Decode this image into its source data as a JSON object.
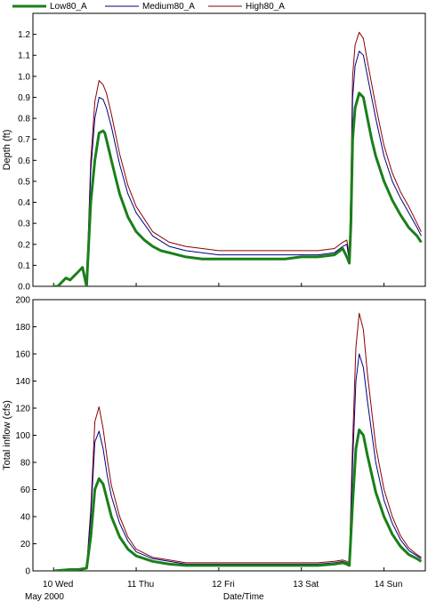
{
  "legend": [
    "Low80_A",
    "Medium80_A",
    "High80_A"
  ],
  "colors": {
    "Low80_A": "#1a7f1a",
    "Medium80_A": "#000080",
    "High80_A": "#8b0000"
  },
  "x_axis": {
    "label": "Date/Time",
    "ticks": [
      {
        "day": 0,
        "label": "10 Wed"
      },
      {
        "day": 1,
        "label": "11 Thu"
      },
      {
        "day": 2,
        "label": "12 Fri"
      },
      {
        "day": 3,
        "label": "13 Sat"
      },
      {
        "day": 4,
        "label": "14 Sun"
      }
    ],
    "sublabel": "May 2000",
    "range_days": [
      -0.25,
      4.5
    ]
  },
  "chart_data": [
    {
      "type": "line",
      "ylabel": "Depth (ft)",
      "ylim": [
        0,
        1.3
      ],
      "yticks": [
        0.0,
        0.1,
        0.2,
        0.3,
        0.4,
        0.5,
        0.6,
        0.7,
        0.8,
        0.9,
        1.0,
        1.1,
        1.2
      ],
      "grid": false,
      "x_unit": "days since 10 May 2000 00:00",
      "series": [
        {
          "name": "Low80_A",
          "x": [
            0.0,
            0.05,
            0.1,
            0.15,
            0.2,
            0.25,
            0.3,
            0.35,
            0.4,
            0.45,
            0.5,
            0.55,
            0.6,
            0.62,
            0.64,
            0.67,
            0.7,
            0.75,
            0.8,
            0.9,
            1.0,
            1.1,
            1.2,
            1.3,
            1.4,
            1.5,
            1.6,
            1.8,
            2.0,
            2.2,
            2.4,
            2.6,
            2.8,
            3.0,
            3.2,
            3.4,
            3.5,
            3.55,
            3.58,
            3.6,
            3.62,
            3.65,
            3.7,
            3.75,
            3.8,
            3.85,
            3.9,
            4.0,
            4.1,
            4.2,
            4.3,
            4.4,
            4.45
          ],
          "y": [
            0.0,
            0.0,
            0.02,
            0.04,
            0.03,
            0.05,
            0.07,
            0.09,
            0.0,
            0.4,
            0.6,
            0.73,
            0.74,
            0.73,
            0.7,
            0.65,
            0.6,
            0.52,
            0.44,
            0.33,
            0.26,
            0.22,
            0.19,
            0.17,
            0.16,
            0.15,
            0.14,
            0.13,
            0.13,
            0.13,
            0.13,
            0.13,
            0.13,
            0.14,
            0.14,
            0.15,
            0.18,
            0.14,
            0.11,
            0.3,
            0.7,
            0.85,
            0.92,
            0.9,
            0.8,
            0.7,
            0.62,
            0.5,
            0.41,
            0.34,
            0.28,
            0.24,
            0.21
          ]
        },
        {
          "name": "Medium80_A",
          "x": [
            0.4,
            0.45,
            0.5,
            0.55,
            0.6,
            0.64,
            0.7,
            0.8,
            0.9,
            1.0,
            1.2,
            1.4,
            1.6,
            1.8,
            2.0,
            2.4,
            2.8,
            3.2,
            3.4,
            3.5,
            3.55,
            3.58,
            3.6,
            3.62,
            3.65,
            3.7,
            3.75,
            3.8,
            3.9,
            4.0,
            4.1,
            4.2,
            4.3,
            4.4,
            4.45
          ],
          "y": [
            0.0,
            0.55,
            0.8,
            0.9,
            0.89,
            0.85,
            0.76,
            0.58,
            0.44,
            0.35,
            0.24,
            0.19,
            0.17,
            0.16,
            0.15,
            0.15,
            0.15,
            0.15,
            0.16,
            0.19,
            0.2,
            0.12,
            0.4,
            0.9,
            1.05,
            1.12,
            1.1,
            1.0,
            0.8,
            0.62,
            0.5,
            0.42,
            0.35,
            0.28,
            0.24
          ]
        },
        {
          "name": "High80_A",
          "x": [
            0.4,
            0.45,
            0.5,
            0.55,
            0.6,
            0.64,
            0.7,
            0.8,
            0.9,
            1.0,
            1.2,
            1.4,
            1.6,
            1.8,
            2.0,
            2.4,
            2.8,
            3.2,
            3.4,
            3.5,
            3.55,
            3.58,
            3.6,
            3.62,
            3.65,
            3.7,
            3.75,
            3.8,
            3.9,
            4.0,
            4.1,
            4.2,
            4.3,
            4.4,
            4.45
          ],
          "y": [
            0.0,
            0.6,
            0.88,
            0.98,
            0.96,
            0.92,
            0.82,
            0.63,
            0.48,
            0.38,
            0.26,
            0.21,
            0.19,
            0.18,
            0.17,
            0.17,
            0.17,
            0.17,
            0.18,
            0.21,
            0.22,
            0.14,
            0.5,
            1.0,
            1.15,
            1.21,
            1.18,
            1.07,
            0.86,
            0.67,
            0.54,
            0.45,
            0.38,
            0.3,
            0.26
          ]
        }
      ]
    },
    {
      "type": "line",
      "ylabel": "Total inflow (cfs)",
      "ylim": [
        0,
        200
      ],
      "yticks": [
        0,
        20,
        40,
        60,
        80,
        100,
        120,
        140,
        160,
        180,
        200
      ],
      "grid": false,
      "x_unit": "days since 10 May 2000 00:00",
      "series": [
        {
          "name": "Low80_A",
          "x": [
            0.0,
            0.1,
            0.2,
            0.3,
            0.4,
            0.45,
            0.5,
            0.55,
            0.6,
            0.65,
            0.7,
            0.8,
            0.9,
            1.0,
            1.2,
            1.4,
            1.6,
            1.8,
            2.0,
            2.4,
            2.8,
            3.2,
            3.4,
            3.5,
            3.55,
            3.58,
            3.62,
            3.66,
            3.7,
            3.75,
            3.8,
            3.9,
            4.0,
            4.1,
            4.2,
            4.3,
            4.4,
            4.45
          ],
          "y": [
            0,
            0.5,
            1,
            1,
            2,
            25,
            60,
            68,
            64,
            52,
            40,
            25,
            16,
            11,
            7,
            5,
            4,
            4,
            4,
            4,
            4,
            4,
            5,
            6,
            5,
            4,
            50,
            90,
            104,
            100,
            85,
            58,
            40,
            27,
            18,
            12,
            9,
            7
          ]
        },
        {
          "name": "Medium80_A",
          "x": [
            0.4,
            0.45,
            0.5,
            0.55,
            0.6,
            0.65,
            0.7,
            0.8,
            0.9,
            1.0,
            1.2,
            1.4,
            1.6,
            1.8,
            2.0,
            2.4,
            2.8,
            3.2,
            3.4,
            3.5,
            3.55,
            3.58,
            3.62,
            3.66,
            3.7,
            3.75,
            3.8,
            3.9,
            4.0,
            4.1,
            4.2,
            4.3,
            4.4,
            4.45
          ],
          "y": [
            2,
            40,
            95,
            103,
            90,
            70,
            55,
            35,
            22,
            14,
            9,
            7,
            5,
            5,
            5,
            5,
            5,
            5,
            6,
            7,
            6,
            5,
            80,
            140,
            160,
            150,
            125,
            80,
            52,
            35,
            23,
            15,
            11,
            9
          ]
        },
        {
          "name": "High80_A",
          "x": [
            0.4,
            0.45,
            0.5,
            0.55,
            0.6,
            0.65,
            0.7,
            0.8,
            0.9,
            1.0,
            1.2,
            1.4,
            1.6,
            1.8,
            2.0,
            2.4,
            2.8,
            3.2,
            3.4,
            3.5,
            3.55,
            3.58,
            3.62,
            3.66,
            3.7,
            3.75,
            3.8,
            3.9,
            4.0,
            4.1,
            4.2,
            4.3,
            4.4,
            4.45
          ],
          "y": [
            2,
            45,
            110,
            121,
            105,
            82,
            63,
            40,
            25,
            16,
            10,
            8,
            6,
            6,
            6,
            6,
            6,
            6,
            7,
            8,
            7,
            6,
            95,
            165,
            190,
            178,
            145,
            92,
            60,
            40,
            26,
            17,
            12,
            10
          ]
        }
      ]
    }
  ]
}
